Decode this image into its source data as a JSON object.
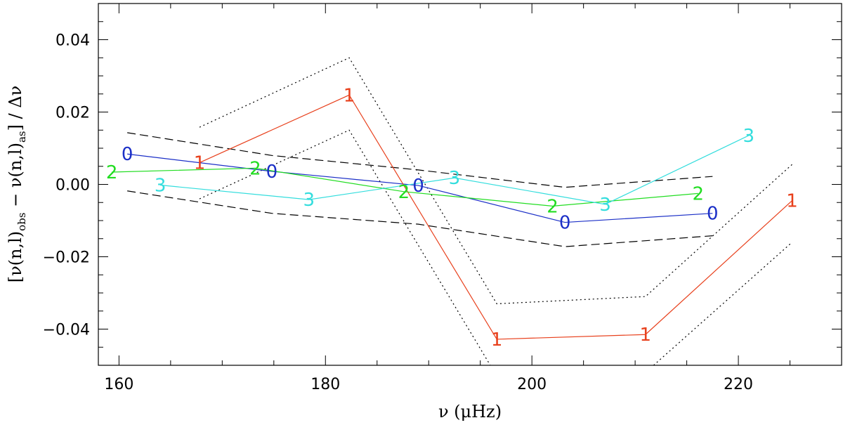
{
  "chart_data": {
    "type": "line",
    "title": "",
    "xlabel": "ν (μHz)",
    "ylabel": "[ν(n,l)obs − ν(n,l)as] / Δν",
    "xlim": [
      158,
      230
    ],
    "ylim": [
      -0.05,
      0.05
    ],
    "x_ticks": [
      160,
      180,
      200,
      220
    ],
    "y_ticks": [
      -0.04,
      -0.02,
      0.0,
      0.02,
      0.04
    ],
    "x_tick_labels": [
      "160",
      "180",
      "200",
      "220"
    ],
    "y_tick_labels": [
      "−0.04",
      "−0.02",
      "0.00",
      "0.02",
      "0.04"
    ],
    "grid": false,
    "series": [
      {
        "degree": "0",
        "color": "#1b2fc7",
        "points": [
          [
            160.8,
            0.0084
          ],
          [
            174.8,
            0.0036
          ],
          [
            189.0,
            -0.0003
          ],
          [
            203.2,
            -0.0105
          ],
          [
            217.5,
            -0.008
          ]
        ]
      },
      {
        "degree": "1",
        "color": "#e8401c",
        "points": [
          [
            167.8,
            0.006
          ],
          [
            182.3,
            0.0247
          ],
          [
            196.6,
            -0.0428
          ],
          [
            211.0,
            -0.0415
          ],
          [
            225.2,
            -0.0045
          ]
        ]
      },
      {
        "degree": "2",
        "color": "#22dd22",
        "points": [
          [
            159.3,
            0.0034
          ],
          [
            173.2,
            0.0045
          ],
          [
            187.6,
            -0.002
          ],
          [
            202.0,
            -0.006
          ],
          [
            216.1,
            -0.0025
          ]
        ]
      },
      {
        "degree": "3",
        "color": "#33dddd",
        "points": [
          [
            164.0,
            -0.0002
          ],
          [
            178.4,
            -0.0042
          ],
          [
            192.5,
            0.0018
          ],
          [
            207.1,
            -0.0055
          ],
          [
            221.0,
            0.0135
          ]
        ]
      }
    ],
    "bounds": [
      {
        "style": "dashed",
        "color": "#000000",
        "points": [
          [
            160.8,
            0.0143
          ],
          [
            174.8,
            0.008
          ],
          [
            189.0,
            0.004
          ],
          [
            203.2,
            -0.0008
          ],
          [
            217.5,
            0.0022
          ]
        ]
      },
      {
        "style": "dashed",
        "color": "#000000",
        "points": [
          [
            160.8,
            -0.0018
          ],
          [
            174.8,
            -0.008
          ],
          [
            189.0,
            -0.011
          ],
          [
            203.2,
            -0.0172
          ],
          [
            217.5,
            -0.0142
          ]
        ]
      },
      {
        "style": "dotted",
        "color": "#000000",
        "points": [
          [
            167.8,
            0.0158
          ],
          [
            182.3,
            0.035
          ],
          [
            196.6,
            -0.033
          ],
          [
            211.0,
            -0.031
          ],
          [
            225.2,
            0.0055
          ]
        ]
      },
      {
        "style": "dotted",
        "color": "#000000",
        "points": [
          [
            167.8,
            -0.004
          ],
          [
            182.3,
            0.015
          ],
          [
            196.6,
            -0.053
          ],
          [
            211.0,
            -0.052
          ],
          [
            225.2,
            -0.016
          ]
        ]
      }
    ]
  }
}
